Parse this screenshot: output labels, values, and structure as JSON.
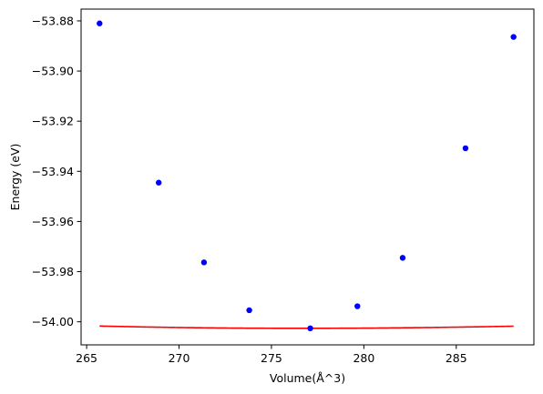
{
  "chart_data": {
    "type": "scatter",
    "xlabel": "Volume(Å^3)",
    "ylabel": "Energy (eV)",
    "xlim": [
      264.7,
      289.2
    ],
    "ylim": [
      -54.0092,
      -53.8753
    ],
    "xticks": [
      265,
      270,
      275,
      280,
      285
    ],
    "yticks": [
      -53.88,
      -53.9,
      -53.92,
      -53.94,
      -53.96,
      -53.98,
      -54.0
    ],
    "ytick_labels": [
      "−53.88",
      "−53.90",
      "−53.92",
      "−53.94",
      "−53.96",
      "−53.98",
      "−54.00"
    ],
    "grid": false,
    "series": [
      {
        "kind": "points",
        "color": "#0000ff",
        "x": [
          265.7,
          268.9,
          271.35,
          273.8,
          277.1,
          279.65,
          282.1,
          285.5,
          288.1
        ],
        "y": [
          -53.881,
          -53.9445,
          -53.9763,
          -53.9954,
          -54.0026,
          -53.9938,
          -53.9745,
          -53.9308,
          -53.8864
        ]
      },
      {
        "kind": "fit-curve",
        "color": "#ff0000",
        "x_min": 265.7,
        "x_max": 288.1,
        "V0": 276.6,
        "E0": -54.0026,
        "B0": 0.00392,
        "B0p": 5.5
      }
    ]
  }
}
